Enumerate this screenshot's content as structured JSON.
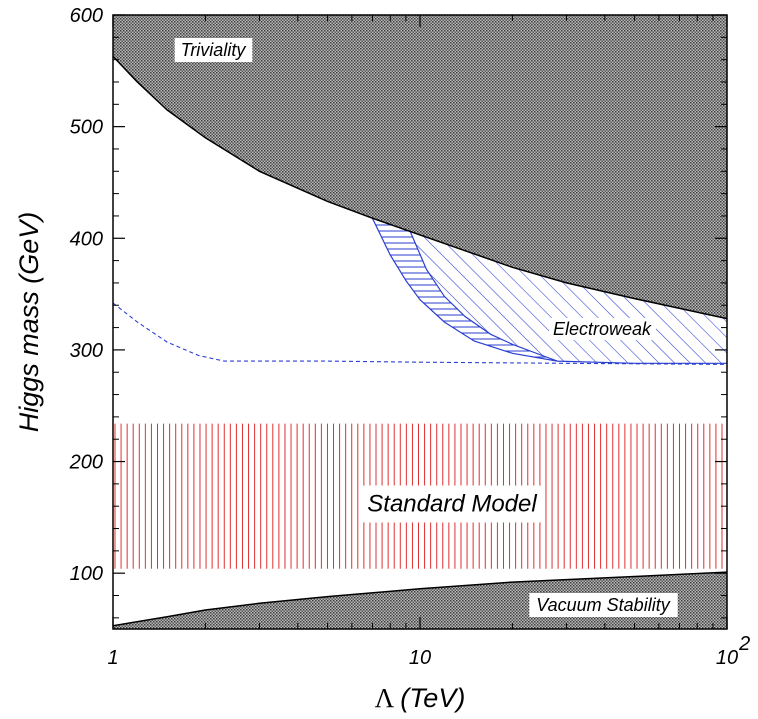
{
  "chart_data": {
    "type": "area",
    "xlabel_symbol": "Λ",
    "xlabel_unit": "(TeV)",
    "ylabel": "Higgs mass (GeV)",
    "xscale": "log",
    "xlim": [
      1,
      100
    ],
    "ylim": [
      50,
      600
    ],
    "x_ticks": [
      {
        "value": 1,
        "base": "1",
        "exp": ""
      },
      {
        "value": 10,
        "base": "10",
        "exp": ""
      },
      {
        "value": 100,
        "base": "10",
        "exp": "2"
      }
    ],
    "y_ticks": [
      100,
      200,
      300,
      400,
      500,
      600
    ],
    "y_tick_labels": [
      "100",
      "200",
      "300",
      "400",
      "500",
      "600"
    ],
    "regions": {
      "triviality": {
        "label": "Triviality",
        "lower_boundary": {
          "x": [
            1,
            1.2,
            1.5,
            2,
            3,
            5,
            7,
            10,
            20,
            30,
            50,
            100
          ],
          "y": [
            563,
            540,
            515,
            490,
            460,
            433,
            418,
            403,
            374,
            360,
            346,
            328
          ]
        }
      },
      "vacuum_stability": {
        "label": "Vacuum Stability",
        "upper_boundary": {
          "x": [
            1,
            1.5,
            2,
            3,
            5,
            10,
            20,
            50,
            100
          ],
          "y": [
            53,
            61,
            67,
            73,
            79,
            86,
            92,
            97,
            101
          ]
        }
      },
      "standard_model": {
        "label": "Standard Model",
        "x": [
          1,
          100
        ],
        "y": [
          104,
          234
        ],
        "color": "#e03030"
      },
      "electroweak": {
        "label": "Electroweak",
        "color": "#2a3fd0",
        "outer_boundary": {
          "x": [
            7,
            8,
            9,
            10,
            12,
            15,
            20,
            28,
            50,
            100
          ],
          "y": [
            418,
            385,
            362,
            345,
            325,
            308,
            297,
            290,
            288,
            288
          ]
        },
        "inner_boundary": {
          "x": [
            9.3,
            10.5,
            12,
            14,
            17,
            20,
            25,
            28
          ],
          "y": [
            406,
            372,
            348,
            330,
            314,
            305,
            295,
            290
          ]
        }
      },
      "dashed_bound": {
        "x": [
          1,
          1.2,
          1.5,
          1.9,
          2.3,
          5,
          10,
          30,
          100
        ],
        "y": [
          342,
          325,
          307,
          295,
          290,
          290,
          289,
          288,
          287
        ]
      }
    },
    "colors": {
      "gray_fill": "#808080",
      "frame": "#000000"
    }
  }
}
